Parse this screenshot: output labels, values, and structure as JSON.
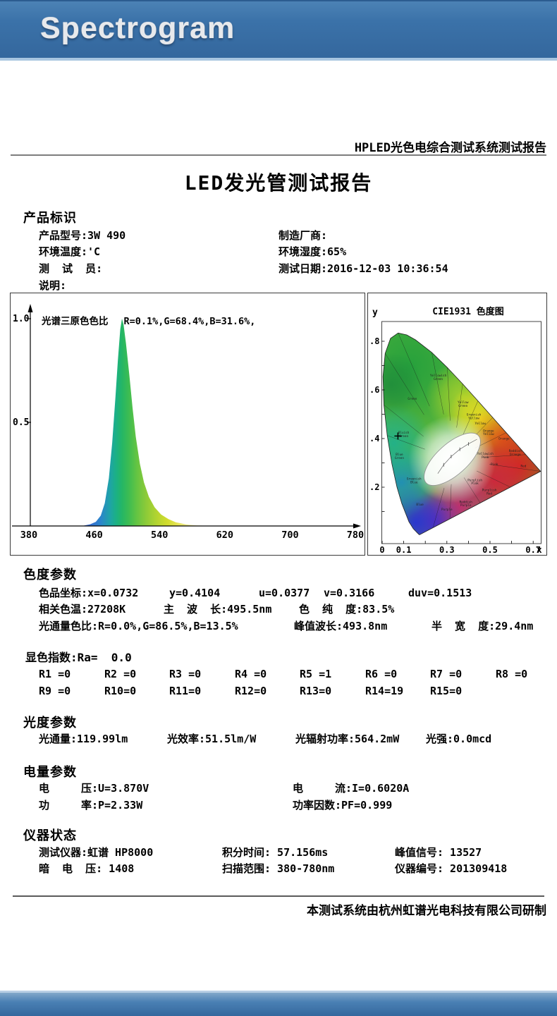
{
  "app": {
    "logo_text": "Spectrogram",
    "header_color": "#3b72a9",
    "header_edge_color": "#a9c6e0"
  },
  "report": {
    "system_title": "HPLED光色电综合测试系统测试报告",
    "title": "LED发光管测试报告",
    "footer_note": "本测试系统由杭州虹谱光电科技有限公司研制"
  },
  "sections": {
    "product": {
      "heading": "产品标识",
      "rows": [
        {
          "left": "产品型号:3W 490",
          "right": "制造厂商:"
        },
        {
          "left": "环境温度:'C",
          "right": "环境湿度:65%"
        },
        {
          "left": "测  试  员:",
          "right": "测试日期:2016-12-03 10:36:54"
        },
        {
          "left": "说明:",
          "right": ""
        }
      ]
    },
    "chromaticity": {
      "heading": "色度参数",
      "segments1": [
        "色品坐标:x=0.0732",
        "y=0.4104",
        "u=0.0377",
        "v=0.3166",
        "duv=0.1513"
      ],
      "segments2": [
        "相关色温:27208K",
        "主  波  长:495.5nm",
        "色  纯  度:83.5%"
      ],
      "segments3": [
        "光通量色比:R=0.0%,G=86.5%,B=13.5%",
        "峰值波长:493.8nm",
        "半  宽  度:29.4nm"
      ]
    },
    "cri": {
      "heading_line": "显色指数:Ra=  0.0",
      "row1": [
        "R1 =0",
        "R2 =0",
        "R3 =0",
        "R4 =0",
        "R5 =1",
        "R6 =0",
        "R7 =0",
        "R8 =0"
      ],
      "row2": [
        "R9 =0",
        "R10=0",
        "R11=0",
        "R12=0",
        "R13=0",
        "R14=19",
        "R15=0"
      ]
    },
    "photometric": {
      "heading": "光度参数",
      "items": [
        "光通量:119.99lm",
        "光效率:51.5lm/W",
        "光辐射功率:564.2mW",
        "光强:0.0mcd"
      ]
    },
    "electrical": {
      "heading": "电量参数",
      "rows": [
        {
          "left": "电　　　压:U=3.870V",
          "right": "电　　　流:I=0.6020A"
        },
        {
          "left": "功　　　率:P=2.33W",
          "right": "功率因数:PF=0.999"
        }
      ]
    },
    "instrument": {
      "heading": "仪器状态",
      "rows": [
        {
          "c1": "测试仪器:虹谱 HP8000",
          "c2": "积分时间: 57.156ms",
          "c3": "峰值信号: 13527"
        },
        {
          "c1": "暗  电  压: 1408",
          "c2": "扫描范围: 380-780nm",
          "c3": "仪器编号: 201309418"
        }
      ]
    }
  },
  "chart_data": [
    {
      "type": "area",
      "name": "spectral-power-distribution",
      "title": "光谱三原色色比",
      "annotation": "R=0.1%,G=68.4%,B=31.6%,",
      "xlim": [
        380,
        780
      ],
      "x_ticks": [
        380,
        460,
        540,
        620,
        700,
        780
      ],
      "y_ticks": [
        {
          "label": "1.0",
          "value": 1.0
        },
        {
          "label": "0.5",
          "value": 0.5
        }
      ],
      "peak_nm": 493.8,
      "fwhm_nm": 29.4,
      "points": [
        [
          445,
          0
        ],
        [
          455,
          0.008
        ],
        [
          462,
          0.02
        ],
        [
          468,
          0.05
        ],
        [
          473,
          0.11
        ],
        [
          478,
          0.23
        ],
        [
          482,
          0.4
        ],
        [
          486,
          0.62
        ],
        [
          489,
          0.8
        ],
        [
          492,
          0.95
        ],
        [
          494,
          1.0
        ],
        [
          496,
          0.97
        ],
        [
          499,
          0.88
        ],
        [
          503,
          0.73
        ],
        [
          507,
          0.57
        ],
        [
          511,
          0.43
        ],
        [
          516,
          0.3
        ],
        [
          521,
          0.21
        ],
        [
          527,
          0.14
        ],
        [
          534,
          0.09
        ],
        [
          542,
          0.055
        ],
        [
          551,
          0.033
        ],
        [
          560,
          0.018
        ],
        [
          572,
          0.008
        ],
        [
          585,
          0.003
        ],
        [
          600,
          0.001
        ],
        [
          615,
          0
        ]
      ],
      "gradient": [
        [
          450,
          "#3a64d2"
        ],
        [
          468,
          "#2b85cb"
        ],
        [
          479,
          "#1fa3a8"
        ],
        [
          487,
          "#1bb184"
        ],
        [
          494,
          "#25b665"
        ],
        [
          502,
          "#3cbc52"
        ],
        [
          512,
          "#63c443"
        ],
        [
          524,
          "#8ecb38"
        ],
        [
          537,
          "#b4d430"
        ],
        [
          550,
          "#d2dc2e"
        ],
        [
          563,
          "#e6e458"
        ],
        [
          578,
          "#f0eba6"
        ],
        [
          600,
          "#f7f3d8"
        ]
      ]
    },
    {
      "type": "scatter",
      "name": "cie1931-chromaticity",
      "title": "CIE1931 色度图",
      "x_axis_label": "x",
      "y_axis_label": "y",
      "x_ticks": [
        "0",
        "0.1",
        "0.3",
        "0.5",
        "0.7"
      ],
      "x_tick_values": [
        0,
        0.1,
        0.3,
        0.5,
        0.7
      ],
      "y_ticks": [
        ".2",
        ".4",
        ".6",
        ".8"
      ],
      "y_tick_values": [
        0.2,
        0.4,
        0.6,
        0.8
      ],
      "point": {
        "x": 0.0732,
        "y": 0.4104
      },
      "palette": {
        "base": "#54b33c"
      },
      "locus": [
        [
          0.1741,
          0.005
        ],
        [
          0.1714,
          0.0051
        ],
        [
          0.1644,
          0.0109
        ],
        [
          0.144,
          0.0297
        ],
        [
          0.1241,
          0.0578
        ],
        [
          0.0913,
          0.1327
        ],
        [
          0.0687,
          0.2007
        ],
        [
          0.0454,
          0.295
        ],
        [
          0.0235,
          0.4127
        ],
        [
          0.0082,
          0.5384
        ],
        [
          0.0039,
          0.6548
        ],
        [
          0.0139,
          0.7502
        ],
        [
          0.0389,
          0.812
        ],
        [
          0.0743,
          0.8338
        ],
        [
          0.1142,
          0.8262
        ],
        [
          0.1547,
          0.8059
        ],
        [
          0.2296,
          0.7543
        ],
        [
          0.3016,
          0.6923
        ],
        [
          0.3731,
          0.6245
        ],
        [
          0.4441,
          0.5547
        ],
        [
          0.5125,
          0.4866
        ],
        [
          0.5752,
          0.4242
        ],
        [
          0.627,
          0.3725
        ],
        [
          0.6658,
          0.334
        ],
        [
          0.6915,
          0.3083
        ],
        [
          0.714,
          0.2859
        ],
        [
          0.7347,
          0.2653
        ]
      ],
      "boundary_targets": [
        [
          0.0235,
          0.4127
        ],
        [
          0.0082,
          0.5384
        ],
        [
          0.0139,
          0.7502
        ],
        [
          0.0743,
          0.8338
        ],
        [
          0.23,
          0.754
        ],
        [
          0.302,
          0.692
        ],
        [
          0.373,
          0.6245
        ],
        [
          0.444,
          0.5547
        ],
        [
          0.5125,
          0.4866
        ],
        [
          0.5752,
          0.4242
        ],
        [
          0.6658,
          0.334
        ],
        [
          0.7347,
          0.2653
        ],
        [
          0.595,
          0.2
        ],
        [
          0.455,
          0.135
        ],
        [
          0.314,
          0.07
        ],
        [
          0.236,
          0.034
        ]
      ],
      "regions": [
        {
          "label": "Green",
          "x": 0.14,
          "y": 0.56
        },
        {
          "label": "Yellowish Green",
          "x": 0.26,
          "y": 0.655
        },
        {
          "label": "Yellow Green",
          "x": 0.375,
          "y": 0.545
        },
        {
          "label": "Greenish Yellow",
          "x": 0.425,
          "y": 0.494
        },
        {
          "label": "Yellow",
          "x": 0.455,
          "y": 0.458
        },
        {
          "label": "Orange Yellow",
          "x": 0.493,
          "y": 0.428
        },
        {
          "label": "Orange",
          "x": 0.565,
          "y": 0.396
        },
        {
          "label": "Yellowish Pink",
          "x": 0.478,
          "y": 0.333
        },
        {
          "label": "Reddish Orange",
          "x": 0.617,
          "y": 0.345
        },
        {
          "label": "Pink",
          "x": 0.52,
          "y": 0.29
        },
        {
          "label": "Red",
          "x": 0.655,
          "y": 0.283
        },
        {
          "label": "Bluish Green",
          "x": 0.1,
          "y": 0.42
        },
        {
          "label": "Blue Green",
          "x": 0.08,
          "y": 0.33
        },
        {
          "label": "Greenish Blue",
          "x": 0.148,
          "y": 0.23
        },
        {
          "label": "Purplish Pink",
          "x": 0.43,
          "y": 0.225
        },
        {
          "label": "Purplish Red",
          "x": 0.497,
          "y": 0.184
        },
        {
          "label": "Reddish Purple",
          "x": 0.388,
          "y": 0.135
        },
        {
          "label": "Purple",
          "x": 0.3,
          "y": 0.105
        },
        {
          "label": "Blue",
          "x": 0.175,
          "y": 0.125
        }
      ]
    }
  ]
}
